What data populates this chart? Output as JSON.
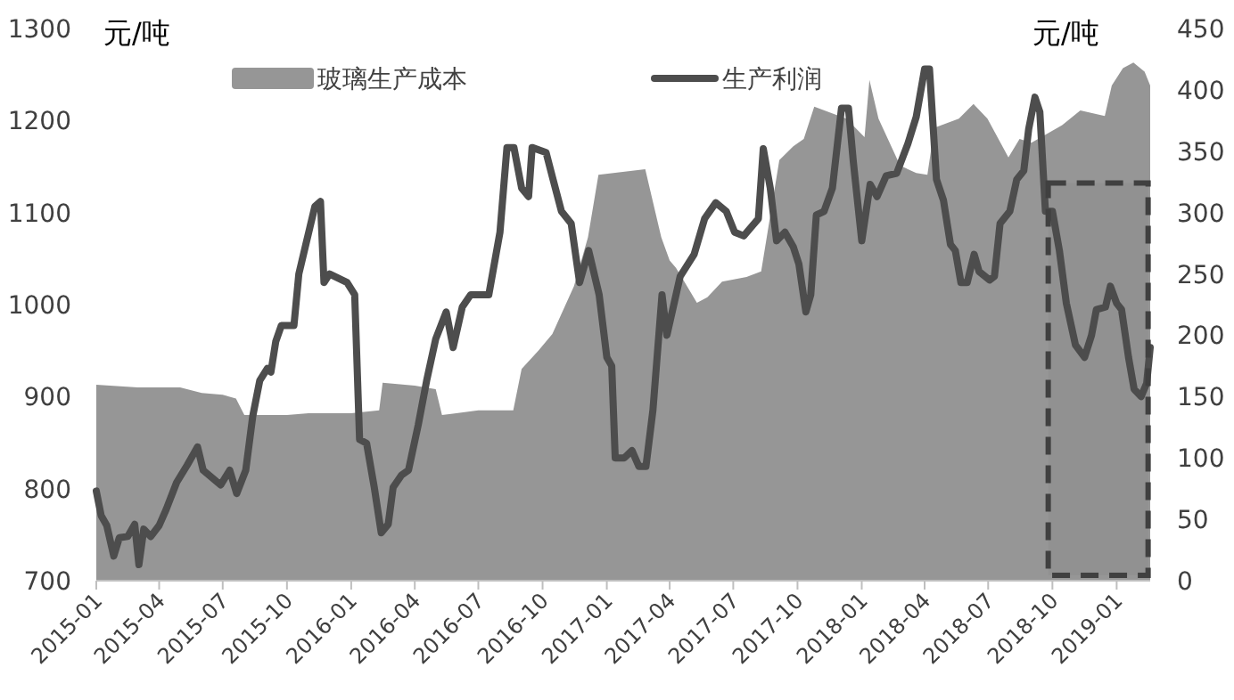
{
  "chart_data": {
    "type": "area",
    "ylabel": "元/吨",
    "y2label": "元/吨",
    "legend": "top",
    "xlim": [
      "2015-01-01",
      "2019-02-18"
    ],
    "xticks": [
      "2015-01",
      "2015-04",
      "2015-07",
      "2015-10",
      "2016-01",
      "2016-04",
      "2016-07",
      "2016-10",
      "2017-01",
      "2017-04",
      "2017-07",
      "2017-10",
      "2018-01",
      "2018-04",
      "2018-07",
      "2018-10",
      "2019-01"
    ],
    "ylim": [
      700,
      1300
    ],
    "yticks": [
      700,
      800,
      900,
      1000,
      1100,
      1200,
      1300
    ],
    "y2lim": [
      0,
      450
    ],
    "y2ticks": [
      0,
      50,
      100,
      150,
      200,
      250,
      300,
      350,
      400,
      450
    ],
    "series": [
      {
        "name": "玻璃生产成本",
        "color": "#969696",
        "x": [
          "2015-01-01",
          "2015-03-01",
          "2015-05-01",
          "2015-06-01",
          "2015-07-01",
          "2015-07-20",
          "2015-08-01",
          "2015-10-01",
          "2015-11-01",
          "2016-01-01",
          "2016-02-10",
          "2016-02-15",
          "2016-04-01",
          "2016-05-01",
          "2016-05-10",
          "2016-07-01",
          "2016-08-20",
          "2016-09-01",
          "2016-09-25",
          "2016-10-15",
          "2016-11-15",
          "2016-12-05",
          "2016-12-20",
          "2017-02-25",
          "2017-03-20",
          "2017-04-01",
          "2017-04-10",
          "2017-05-10",
          "2017-05-25",
          "2017-06-15",
          "2017-07-20",
          "2017-08-10",
          "2017-09-05",
          "2017-09-25",
          "2017-10-10",
          "2017-10-25",
          "2017-12-10",
          "2018-01-05",
          "2018-01-12",
          "2018-01-25",
          "2018-02-25",
          "2018-03-20",
          "2018-04-05",
          "2018-04-15",
          "2018-05-20",
          "2018-06-10",
          "2018-06-30",
          "2018-07-30",
          "2018-08-15",
          "2018-09-01",
          "2018-10-15",
          "2018-11-10",
          "2018-12-15",
          "2018-12-25",
          "2019-01-10",
          "2019-01-25",
          "2019-02-10",
          "2019-02-18"
        ],
        "values": [
          913,
          910,
          910,
          904,
          902,
          898,
          880,
          880,
          882,
          882,
          885,
          915,
          912,
          908,
          880,
          885,
          885,
          930,
          950,
          968,
          1020,
          1073,
          1141,
          1147,
          1073,
          1048,
          1040,
          1002,
          1008,
          1025,
          1030,
          1036,
          1157,
          1172,
          1180,
          1215,
          1202,
          1182,
          1244,
          1202,
          1151,
          1143,
          1141,
          1192,
          1202,
          1218,
          1202,
          1160,
          1180,
          1176,
          1195,
          1211,
          1205,
          1238,
          1257,
          1263,
          1253,
          1238
        ]
      },
      {
        "name": "生产利润",
        "type": "line",
        "axis": "y2",
        "color": "#4d4d4d",
        "x": [
          "2015-01-01",
          "2015-01-08",
          "2015-01-16",
          "2015-01-26",
          "2015-02-03",
          "2015-02-15",
          "2015-02-25",
          "2015-03-03",
          "2015-03-10",
          "2015-03-20",
          "2015-04-01",
          "2015-04-11",
          "2015-04-26",
          "2015-05-11",
          "2015-05-26",
          "2015-06-03",
          "2015-06-28",
          "2015-07-11",
          "2015-07-21",
          "2015-08-03",
          "2015-08-13",
          "2015-08-23",
          "2015-09-03",
          "2015-09-08",
          "2015-09-15",
          "2015-09-23",
          "2015-10-11",
          "2015-10-18",
          "2015-10-28",
          "2015-11-10",
          "2015-11-18",
          "2015-11-23",
          "2015-12-01",
          "2015-12-26",
          "2016-01-06",
          "2016-01-13",
          "2016-01-23",
          "2016-02-03",
          "2016-02-13",
          "2016-02-23",
          "2016-03-01",
          "2016-03-13",
          "2016-03-23",
          "2016-04-06",
          "2016-04-18",
          "2016-05-01",
          "2016-05-16",
          "2016-05-26",
          "2016-06-08",
          "2016-06-20",
          "2016-07-16",
          "2016-08-01",
          "2016-08-11",
          "2016-08-21",
          "2016-09-01",
          "2016-09-11",
          "2016-09-16",
          "2016-10-06",
          "2016-10-16",
          "2016-10-28",
          "2016-11-11",
          "2016-11-23",
          "2016-12-06",
          "2016-12-21",
          "2017-01-01",
          "2017-01-08",
          "2017-01-13",
          "2017-01-26",
          "2017-02-06",
          "2017-02-16",
          "2017-02-26",
          "2017-03-08",
          "2017-03-21",
          "2017-03-28",
          "2017-04-16",
          "2017-05-06",
          "2017-05-21",
          "2017-06-06",
          "2017-06-21",
          "2017-07-03",
          "2017-07-16",
          "2017-08-06",
          "2017-08-13",
          "2017-08-23",
          "2017-09-01",
          "2017-09-13",
          "2017-09-25",
          "2017-10-03",
          "2017-10-13",
          "2017-10-20",
          "2017-10-28",
          "2017-11-08",
          "2017-11-20",
          "2017-12-03",
          "2017-12-13",
          "2017-12-20",
          "2018-01-01",
          "2018-01-13",
          "2018-01-23",
          "2018-02-05",
          "2018-02-20",
          "2018-03-08",
          "2018-03-20",
          "2018-04-01",
          "2018-04-08",
          "2018-04-18",
          "2018-04-28",
          "2018-05-08",
          "2018-05-15",
          "2018-05-23",
          "2018-06-01",
          "2018-06-11",
          "2018-06-18",
          "2018-07-03",
          "2018-07-10",
          "2018-07-18",
          "2018-08-01",
          "2018-08-11",
          "2018-08-21",
          "2018-08-28",
          "2018-09-06",
          "2018-09-13",
          "2018-09-21",
          "2018-10-01",
          "2018-10-11",
          "2018-10-21",
          "2018-11-03",
          "2018-11-16",
          "2018-11-26",
          "2018-12-03",
          "2018-12-16",
          "2018-12-23",
          "2019-01-01",
          "2019-01-08",
          "2019-01-18",
          "2019-01-26",
          "2019-02-05",
          "2019-02-13",
          "2019-02-18"
        ],
        "values": [
          73,
          53,
          45,
          20,
          35,
          36,
          46,
          13,
          42,
          36,
          45,
          58,
          80,
          94,
          109,
          90,
          78,
          90,
          71,
          90,
          134,
          163,
          173,
          170,
          195,
          208,
          208,
          250,
          274,
          305,
          309,
          243,
          250,
          243,
          233,
          115,
          112,
          76,
          39,
          46,
          76,
          86,
          90,
          127,
          163,
          197,
          219,
          190,
          223,
          233,
          233,
          284,
          353,
          353,
          320,
          313,
          353,
          349,
          327,
          301,
          291,
          243,
          269,
          233,
          182,
          175,
          100,
          100,
          106,
          93,
          93,
          139,
          233,
          200,
          248,
          266,
          295,
          308,
          301,
          284,
          281,
          295,
          352,
          320,
          277,
          284,
          272,
          258,
          219,
          233,
          298,
          301,
          320,
          385,
          385,
          341,
          277,
          323,
          313,
          330,
          332,
          356,
          378,
          417,
          417,
          327,
          310,
          274,
          269,
          243,
          243,
          266,
          252,
          245,
          248,
          291,
          301,
          327,
          334,
          368,
          394,
          382,
          301,
          301,
          269,
          226,
          192,
          182,
          200,
          221,
          223,
          240,
          226,
          221,
          182,
          156,
          150,
          161,
          190
        ]
      }
    ],
    "bands": [
      {
        "axis": "x",
        "from": "2018-09-25",
        "to": "2019-02-15",
        "color": "#404040"
      }
    ]
  }
}
